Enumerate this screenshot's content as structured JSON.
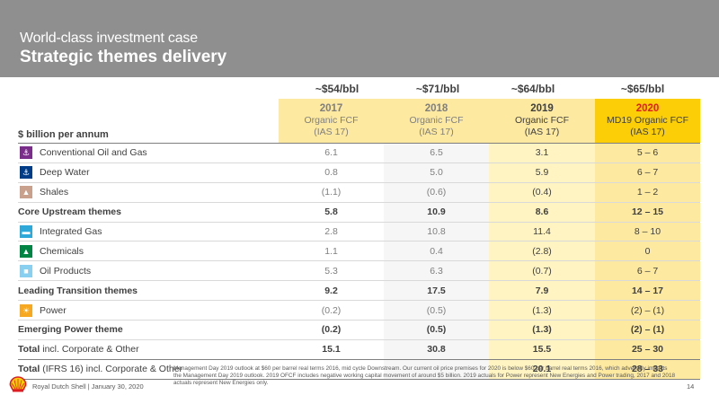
{
  "header": {
    "subtitle": "World-class investment case",
    "title": "Strategic themes delivery"
  },
  "prices": [
    "~$54/bbl",
    "~$71/bbl",
    "~$64/bbl",
    "~$65/bbl"
  ],
  "table": {
    "row_header": "$ billion per annum",
    "columns": [
      {
        "year": "2017",
        "line1": "Organic FCF",
        "line2": "(IAS 17)"
      },
      {
        "year": "2018",
        "line1": "Organic FCF",
        "line2": "(IAS 17)"
      },
      {
        "year": "2019",
        "line1": "Organic FCF",
        "line2": "(IAS 17)"
      },
      {
        "year": "2020",
        "line1": "MD19 Organic FCF",
        "line2": "(IAS 17)"
      }
    ],
    "rows": [
      {
        "label": "Conventional Oil and Gas",
        "icon": "oil-rig-icon",
        "icon_color": "#7b2d8b",
        "glyph": "⚓",
        "kind": "sub",
        "values": [
          "6.1",
          "6.5",
          "3.1",
          "5 – 6"
        ]
      },
      {
        "label": "Deep Water",
        "icon": "deep-water-icon",
        "icon_color": "#003c88",
        "glyph": "⚓",
        "kind": "sub",
        "values": [
          "0.8",
          "5.0",
          "5.9",
          "6 – 7"
        ]
      },
      {
        "label": "Shales",
        "icon": "shales-icon",
        "icon_color": "#c8a08c",
        "glyph": "▲",
        "kind": "sub",
        "values": [
          "(1.1)",
          "(0.6)",
          "(0.4)",
          "1 – 2"
        ]
      },
      {
        "label": "Core Upstream themes",
        "kind": "bold",
        "values": [
          "5.8",
          "10.9",
          "8.6",
          "12 – 15"
        ]
      },
      {
        "label": "Integrated Gas",
        "icon": "integrated-gas-icon",
        "icon_color": "#2ea8d9",
        "glyph": "▬",
        "kind": "sub",
        "values": [
          "2.8",
          "10.8",
          "11.4",
          "8 – 10"
        ]
      },
      {
        "label": "Chemicals",
        "icon": "chemicals-icon",
        "icon_color": "#008443",
        "glyph": "▲",
        "kind": "sub",
        "values": [
          "1.1",
          "0.4",
          "(2.8)",
          "0"
        ]
      },
      {
        "label": "Oil Products",
        "icon": "oil-products-icon",
        "icon_color": "#89cff0",
        "glyph": "■",
        "kind": "sub",
        "values": [
          "5.3",
          "6.3",
          "(0.7)",
          "6 – 7"
        ]
      },
      {
        "label": "Leading Transition themes",
        "kind": "bold",
        "values": [
          "9.2",
          "17.5",
          "7.9",
          "14 – 17"
        ]
      },
      {
        "label": "Power",
        "icon": "power-icon",
        "icon_color": "#f7a823",
        "glyph": "☀",
        "kind": "sub",
        "values": [
          "(0.2)",
          "(0.5)",
          "(1.3)",
          "(2) – (1)"
        ]
      },
      {
        "label": "Emerging Power theme",
        "kind": "bold",
        "values": [
          "(0.2)",
          "(0.5)",
          "(1.3)",
          "(2) – (1)"
        ]
      },
      {
        "label_bold": "Total",
        "label_rest": " incl. Corporate & Other",
        "kind": "total",
        "values": [
          "15.1",
          "30.8",
          "15.5",
          "25 – 30"
        ]
      },
      {
        "label_bold": "Total",
        "label_rest": " (IFRS 16) incl. Corporate & Other",
        "kind": "total",
        "values": [
          "",
          "",
          "20.1",
          "28 – 33"
        ]
      }
    ]
  },
  "footer": {
    "company": "Royal Dutch Shell | January 30, 2020",
    "page": "14",
    "footnote": "Management Day 2019 outlook at $60 per barrel real terms 2016, mid cycle Downstream. Our current oil price premises for 2020 is below $60 per barrel real terms 2016, which adversely impacts the Management Day 2019 outlook. 2019 OFCF includes negative working capital movement of around $5 billion. 2019 actuals for Power represent New Energies and Power trading, 2017 and 2018 actuals represent New Energies only."
  }
}
